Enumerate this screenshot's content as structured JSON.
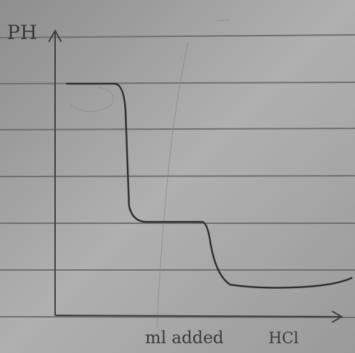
{
  "axes": {
    "y_label": "PH",
    "x_label": "ml added",
    "x_note": "HCl"
  }
}
